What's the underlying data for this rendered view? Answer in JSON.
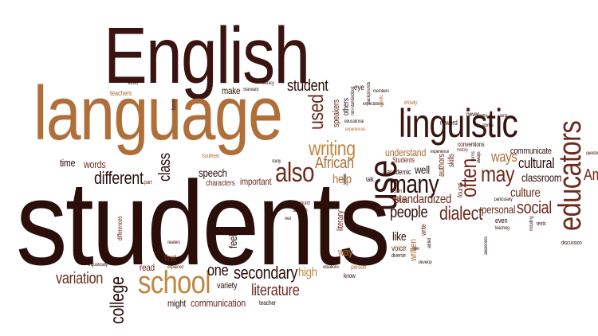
{
  "colors": {
    "dark": "#2b0e0a",
    "maroon": "#6e2b1e",
    "brown": "#8a4b25",
    "tan": "#b06f38",
    "gold": "#c1873f",
    "light": "#c48f5a"
  },
  "cloud": {
    "words": [
      "students",
      "English",
      "language",
      "linguistic",
      "use",
      "school",
      "educators",
      "many",
      "student",
      "used",
      "also",
      "writing",
      "different",
      "may",
      "often",
      "dialect",
      "standardized",
      "culture",
      "social",
      "cultural",
      "ways",
      "people",
      "secondary",
      "literature",
      "variation",
      "college",
      "high",
      "one",
      "class",
      "African",
      "help",
      "speech",
      "words",
      "time",
      "communication",
      "classroom",
      "understand",
      "personal",
      "like",
      "well",
      "make",
      "first",
      "feel",
      "way",
      "might",
      "read",
      "variety",
      "characters",
      "important",
      "communicate",
      "teachers",
      "voice",
      "written",
      "authors",
      "literary",
      "speakers",
      "others",
      "essay",
      "eye",
      "teacher",
      "Students",
      "academic",
      "even",
      "skills",
      "know",
      "person",
      "talk",
      "write",
      "build",
      "found",
      "diverse",
      "part",
      "n-word",
      "never",
      "Southern",
      "texts",
      "settings",
      "learn",
      "schools",
      "family",
      "educational",
      "discussion",
      "expectations",
      "experiences",
      "conventions",
      "readers",
      "explained",
      "Standard",
      "situations",
      "linguistically",
      "teaching",
      "non-standardized",
      "sound",
      "literacy",
      "history",
      "Am",
      "differences",
      "study",
      "including",
      "particularly",
      "develop",
      "able",
      "members",
      "experience",
      "stories",
      "voices",
      "backgrounds",
      "question",
      "specific",
      "real",
      "awareness",
      "forms",
      "always",
      "poetry",
      "using",
      "added"
    ]
  }
}
